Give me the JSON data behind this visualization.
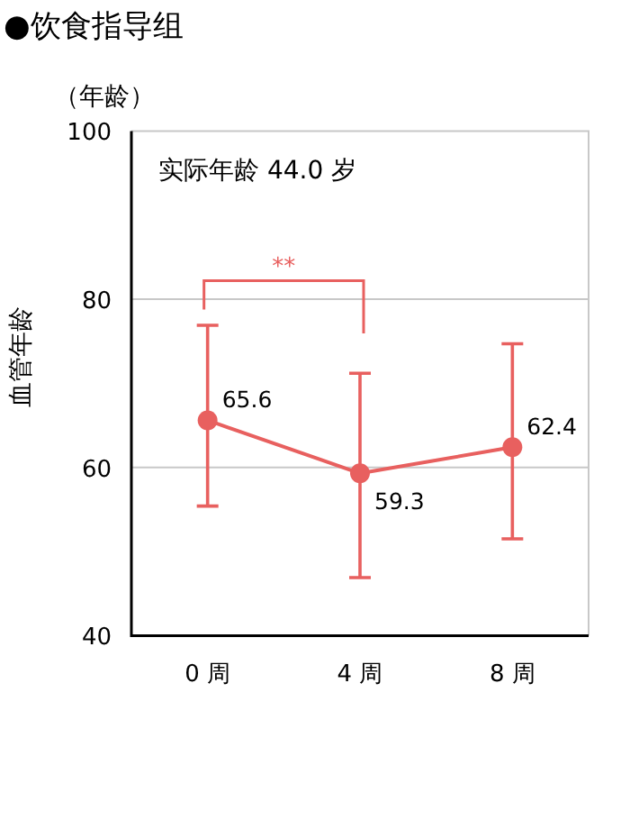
{
  "chart_data": {
    "type": "line",
    "title": "●饮食指导组",
    "ylabel": "血管年龄",
    "annotations": [
      "实际年龄 44.0 岁",
      "**",
      "（年龄）"
    ],
    "categories": [
      "0 周",
      "4 周",
      "8 周"
    ],
    "values": [
      65.6,
      59.3,
      62.4
    ],
    "errors": [
      [
        55.4,
        76.9
      ],
      [
        46.9,
        71.2
      ],
      [
        51.5,
        74.7
      ]
    ],
    "color": "#e8605f",
    "marker": "circle",
    "line_style": "solid",
    "data_labels": true,
    "ylim": [
      40,
      100
    ],
    "yticks": [
      40,
      60,
      80,
      100
    ],
    "grid": "y"
  }
}
